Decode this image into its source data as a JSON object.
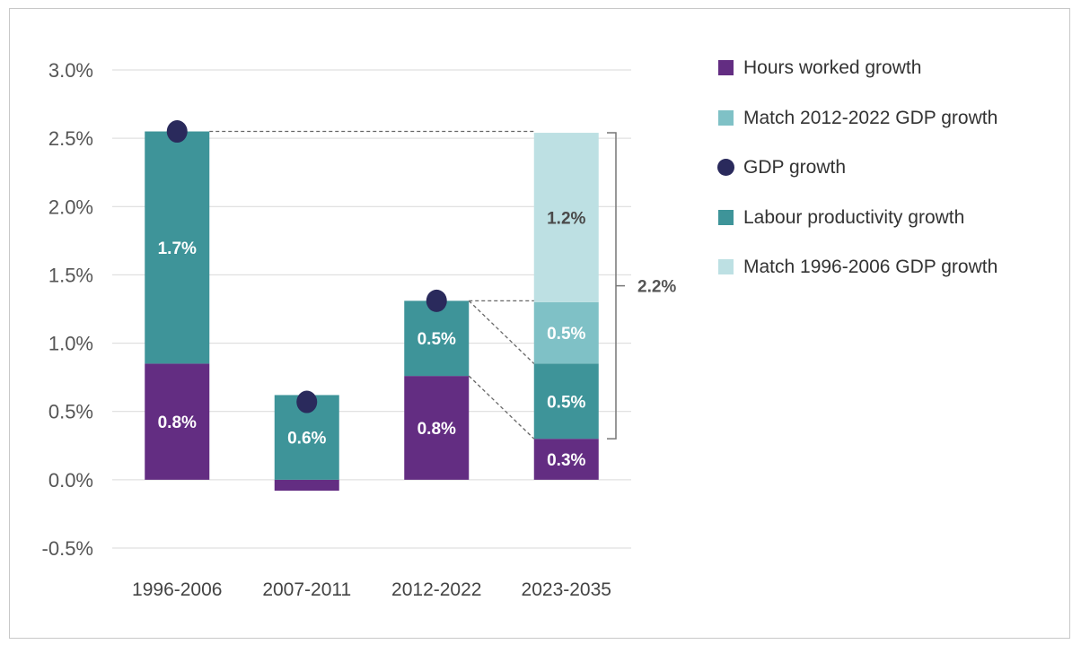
{
  "chart_data": {
    "type": "bar",
    "stacked": true,
    "categories": [
      "1996-2006",
      "2007-2011",
      "2012-2022",
      "2023-2035"
    ],
    "ylim": [
      -0.5,
      3.0
    ],
    "yticks": [
      "-0.5%",
      "0.0%",
      "0.5%",
      "1.0%",
      "1.5%",
      "2.0%",
      "2.5%",
      "3.0%"
    ],
    "grid": true,
    "legend_position": "right",
    "colors": {
      "hours": "#632d82",
      "labour": "#3e9499",
      "match2012": "#7fc1c6",
      "match1996": "#bde0e3",
      "gdp": "#2a2a5c",
      "connector": "#666666",
      "bracket": "#777777"
    },
    "series": [
      {
        "key": "hours",
        "name": "Hours worked growth",
        "values": [
          0.85,
          -0.08,
          0.76,
          0.3
        ],
        "labels": [
          "0.8%",
          "",
          "0.8%",
          "0.3%"
        ]
      },
      {
        "key": "labour",
        "name": "Labour productivity growth",
        "values": [
          1.7,
          0.62,
          0.55,
          0.55
        ],
        "labels": [
          "1.7%",
          "0.6%",
          "0.5%",
          "0.5%"
        ]
      },
      {
        "key": "match2012",
        "name": "Match 2012-2022 GDP growth",
        "values": [
          0,
          0,
          0,
          0.45
        ],
        "labels": [
          "",
          "",
          "",
          "0.5%"
        ]
      },
      {
        "key": "match1996",
        "name": "Match 1996-2006 GDP growth",
        "values": [
          0,
          0,
          0,
          1.24
        ],
        "labels": [
          "",
          "",
          "",
          "1.2%"
        ]
      }
    ],
    "gdp_growth": {
      "name": "GDP growth",
      "values": [
        2.55,
        0.57,
        1.31,
        null
      ]
    },
    "bracket_label": "2.2%",
    "legend": [
      {
        "key": "hours",
        "label": "Hours worked growth",
        "shape": "square"
      },
      {
        "key": "match2012",
        "label": "Match 2012-2022 GDP growth",
        "shape": "square"
      },
      {
        "key": "gdp",
        "label": "GDP growth",
        "shape": "circle"
      },
      {
        "key": "labour",
        "label": "Labour productivity growth",
        "shape": "square"
      },
      {
        "key": "match1996",
        "label": "Match 1996-2006 GDP growth",
        "shape": "square"
      }
    ]
  }
}
